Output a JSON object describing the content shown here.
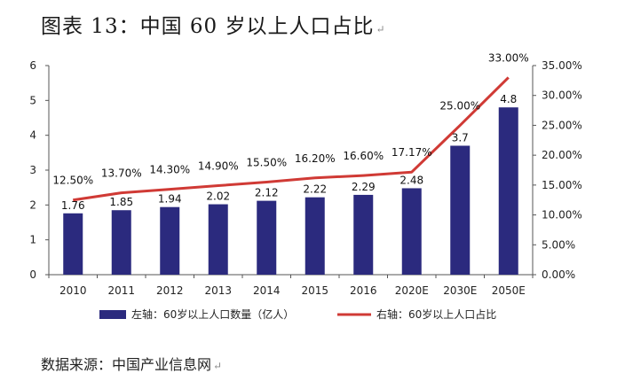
{
  "title": "图表 13：中国 60 岁以上人口占比",
  "title_mark": "↵",
  "source": "数据来源：中国产业信息网",
  "source_mark": "↵",
  "colors": {
    "bar": "#2b2a7e",
    "line": "#d03a35",
    "axis": "#555555"
  },
  "chart_data": {
    "type": "bar+line",
    "categories": [
      "2010",
      "2011",
      "2012",
      "2013",
      "2014",
      "2015",
      "2016",
      "2020E",
      "2030E",
      "2050E"
    ],
    "series": [
      {
        "name": "左轴：60岁以上人口数量（亿人）",
        "type": "bar",
        "axis": "left",
        "values": [
          1.76,
          1.85,
          1.94,
          2.02,
          2.12,
          2.22,
          2.29,
          2.48,
          3.7,
          4.8
        ],
        "labels": [
          "1.76",
          "1.85",
          "1.94",
          "2.02",
          "2.12",
          "2.22",
          "2.29",
          "2.48",
          "3.7",
          "4.8"
        ]
      },
      {
        "name": "右轴：60岁以上人口占比",
        "type": "line",
        "axis": "right",
        "values": [
          12.5,
          13.7,
          14.3,
          14.9,
          15.5,
          16.2,
          16.6,
          17.17,
          25.0,
          33.0
        ],
        "labels": [
          "12.50%",
          "13.70%",
          "14.30%",
          "14.90%",
          "15.50%",
          "16.20%",
          "16.60%",
          "17.17%",
          "25.00%",
          "33.00%"
        ]
      }
    ],
    "left_axis": {
      "ylim": [
        0,
        6
      ],
      "ticks": [
        "0",
        "1",
        "2",
        "3",
        "4",
        "5",
        "6"
      ]
    },
    "right_axis": {
      "ylim": [
        0,
        35
      ],
      "ticks": [
        "0.00%",
        "5.00%",
        "10.00%",
        "15.00%",
        "20.00%",
        "25.00%",
        "30.00%",
        "35.00%"
      ]
    },
    "grid": false,
    "legend_position": "bottom"
  }
}
